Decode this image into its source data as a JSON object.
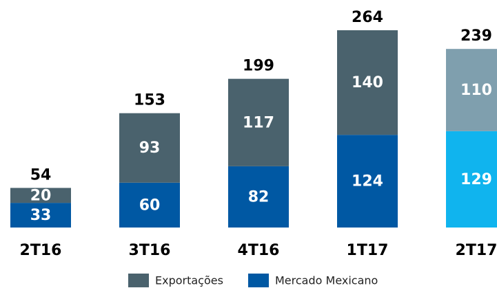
{
  "chart_data": {
    "type": "stacked_bar",
    "categories": [
      "2T16",
      "3T16",
      "4T16",
      "1T17",
      "2T17"
    ],
    "series": [
      {
        "name": "Mercado Mexicano",
        "color": "#0058a3",
        "point_colors": [
          "#0058a3",
          "#0058a3",
          "#0058a3",
          "#0058a3",
          "#10b4ee"
        ],
        "values": [
          33,
          60,
          82,
          124,
          129
        ]
      },
      {
        "name": "Exportações",
        "color": "#4a626d",
        "point_colors": [
          "#4a626d",
          "#4a626d",
          "#4a626d",
          "#4a626d",
          "#7f9fae"
        ],
        "values": [
          20,
          93,
          117,
          140,
          110
        ]
      }
    ],
    "totals": [
      54,
      153,
      199,
      264,
      239
    ]
  }
}
